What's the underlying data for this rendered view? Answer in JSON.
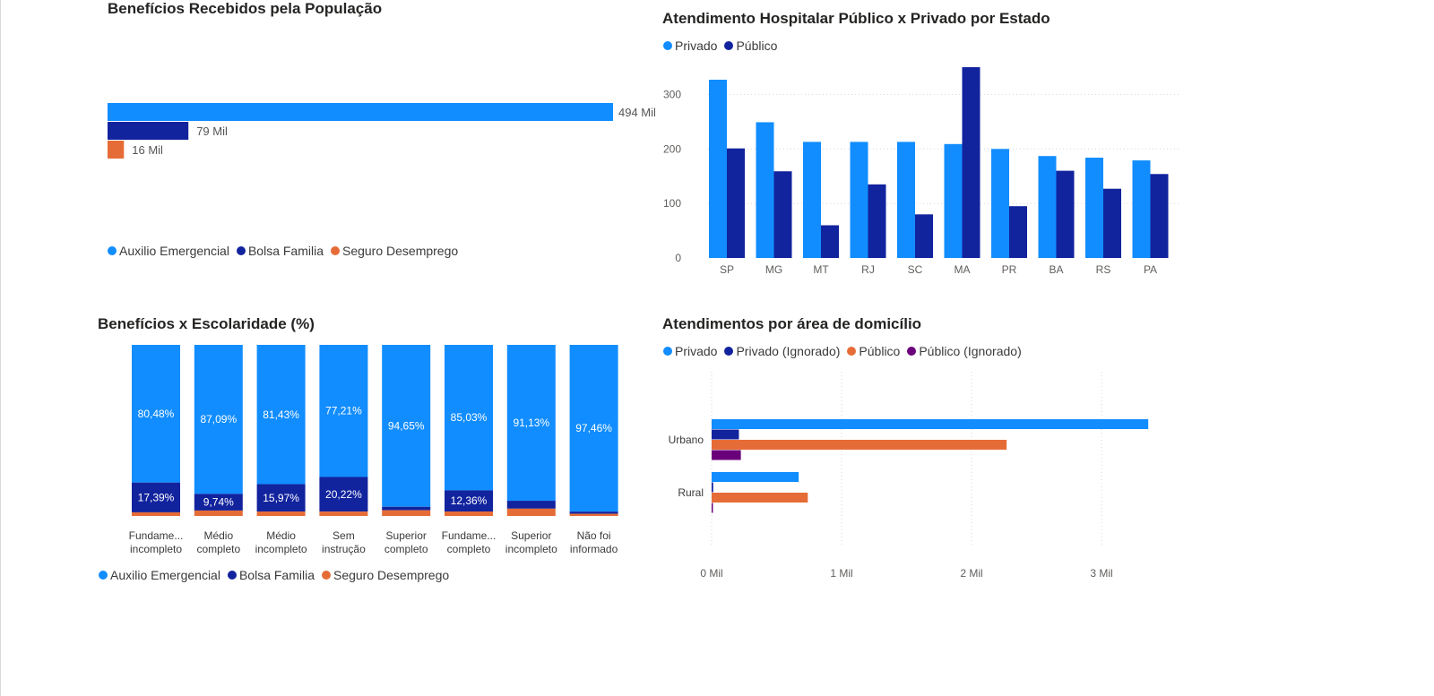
{
  "colors": {
    "light_blue": "#118DFF",
    "dark_blue": "#12239E",
    "orange": "#E66C37",
    "purple": "#6B007B",
    "grid": "#d6d6d6",
    "axis_text": "#605E5C"
  },
  "chart_data": [
    {
      "id": "beneficios",
      "type": "bar",
      "orientation": "horizontal",
      "title": "Benefícios Recebidos pela População",
      "categories": [
        "Auxilio Emergencial",
        "Bolsa Familia",
        "Seguro Desemprego"
      ],
      "values": [
        494000,
        79000,
        16000
      ],
      "value_labels": [
        "494 Mil",
        "79 Mil",
        "16 Mil"
      ],
      "series_colors": [
        "#118DFF",
        "#12239E",
        "#E66C37"
      ],
      "legend": [
        {
          "label": "Auxilio Emergencial",
          "color": "#118DFF"
        },
        {
          "label": "Bolsa Familia",
          "color": "#12239E"
        },
        {
          "label": "Seguro Desemprego",
          "color": "#E66C37"
        }
      ],
      "legend_position": "bottom-left",
      "grid": false
    },
    {
      "id": "atendimento_estado",
      "type": "bar",
      "title": "Atendimento Hospitalar Público x Privado por Estado",
      "categories": [
        "SP",
        "MG",
        "MT",
        "RJ",
        "SC",
        "MA",
        "PR",
        "BA",
        "RS",
        "PA"
      ],
      "series": [
        {
          "name": "Privado",
          "color": "#118DFF",
          "values": [
            327,
            249,
            213,
            213,
            213,
            209,
            200,
            187,
            184,
            179
          ]
        },
        {
          "name": "Público",
          "color": "#12239E",
          "values": [
            201,
            159,
            60,
            135,
            80,
            350,
            95,
            160,
            127,
            154
          ]
        }
      ],
      "ylim": [
        0,
        350
      ],
      "yticks": [
        0,
        100,
        200,
        300
      ],
      "grid": true,
      "legend_position": "top-left"
    },
    {
      "id": "escolaridade",
      "type": "bar",
      "stacked": "100%",
      "title": "Benefícios x Escolaridade (%)",
      "categories": [
        [
          "Fundame...",
          "incompleto"
        ],
        [
          "Médio",
          "completo"
        ],
        [
          "Médio",
          "incompleto"
        ],
        [
          "Sem",
          "instrução"
        ],
        [
          "Superior",
          "completo"
        ],
        [
          "Fundame...",
          "completo"
        ],
        [
          "Superior",
          "incompleto"
        ],
        [
          "Não foi",
          "informado"
        ]
      ],
      "series": [
        {
          "name": "Auxilio Emergencial",
          "color": "#118DFF",
          "values": [
            80.48,
            87.09,
            81.43,
            77.21,
            94.65,
            85.03,
            91.13,
            97.46
          ],
          "labels": [
            "80,48%",
            "87,09%",
            "81,43%",
            "77,21%",
            "94,65%",
            "85,03%",
            "91,13%",
            "97,46%"
          ]
        },
        {
          "name": "Bolsa Familia",
          "color": "#12239E",
          "values": [
            17.39,
            9.74,
            15.97,
            20.22,
            2.0,
            12.36,
            4.6,
            1.3
          ],
          "labels": [
            "17,39%",
            "9,74%",
            "15,97%",
            "20,22%",
            "",
            "12,36%",
            "",
            ""
          ]
        },
        {
          "name": "Seguro Desemprego",
          "color": "#E66C37",
          "values": [
            2.13,
            3.17,
            2.6,
            2.57,
            3.35,
            2.61,
            4.27,
            1.24
          ],
          "labels": [
            "",
            "",
            "",
            "",
            "",
            "",
            "",
            ""
          ]
        }
      ],
      "ylim": [
        0,
        100
      ],
      "grid": false,
      "legend_position": "bottom-left"
    },
    {
      "id": "domicilio",
      "type": "bar",
      "orientation": "horizontal",
      "title": "Atendimentos por área de domicílio",
      "categories": [
        "Urbano",
        "Rural"
      ],
      "series": [
        {
          "name": "Privado",
          "color": "#118DFF",
          "values": [
            3360,
            670
          ]
        },
        {
          "name": "Privado (Ignorado)",
          "color": "#12239E",
          "values": [
            210,
            12
          ]
        },
        {
          "name": "Público",
          "color": "#E66C37",
          "values": [
            2270,
            740
          ]
        },
        {
          "name": "Público (Ignorado)",
          "color": "#6B007B",
          "values": [
            225,
            10
          ]
        }
      ],
      "xlim": [
        0,
        3500
      ],
      "xticks": [
        0,
        1000,
        2000,
        3000
      ],
      "xtick_labels": [
        "0 Mil",
        "1 Mil",
        "2 Mil",
        "3 Mil"
      ],
      "grid": true,
      "legend_position": "top-left"
    }
  ]
}
